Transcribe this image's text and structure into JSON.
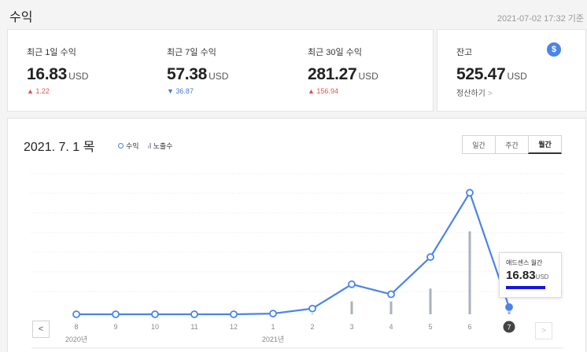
{
  "page": {
    "title": "수익",
    "as_of": "2021-07-02 17:32 기준"
  },
  "summary": [
    {
      "label": "최근 1일 수익",
      "value": "16.83",
      "unit": "USD",
      "delta": "1.22",
      "direction": "up"
    },
    {
      "label": "최근 7일 수익",
      "value": "57.38",
      "unit": "USD",
      "delta": "36.87",
      "direction": "down"
    },
    {
      "label": "최근 30일 수익",
      "value": "281.27",
      "unit": "USD",
      "delta": "156.94",
      "direction": "up"
    }
  ],
  "balance": {
    "label": "잔고",
    "value": "525.47",
    "unit": "USD",
    "link": "정산하기",
    "icon": "dollar-icon"
  },
  "chart_header": {
    "date": "2021. 7. 1 목",
    "legend": {
      "revenue": "수익",
      "impressions": "노출수"
    },
    "tabs": [
      "일간",
      "주간",
      "월간"
    ],
    "active_tab": "월간"
  },
  "tooltip": {
    "label": "애드센스 월간",
    "value": "16.83",
    "unit": "USD"
  },
  "colors": {
    "line": "#4a84e8",
    "bars": "#aab2bd",
    "up": "#e05252",
    "down": "#4a78d6"
  },
  "chart_data": {
    "type": "line",
    "categories": [
      "8",
      "9",
      "10",
      "11",
      "12",
      "1",
      "2",
      "3",
      "4",
      "5",
      "6",
      "7"
    ],
    "year_labels": [
      "2020년",
      "2021년"
    ],
    "series": [
      {
        "name": "수익",
        "values": [
          0,
          0,
          0,
          0,
          0,
          0.5,
          4,
          21,
          14,
          40,
          85,
          5
        ]
      },
      {
        "name": "노출수",
        "values": [
          0,
          0,
          0,
          0,
          0,
          0,
          0.5,
          9,
          9,
          18,
          58,
          2
        ]
      }
    ],
    "ylim": [
      0,
      100
    ],
    "grid": true,
    "selected_index": 11
  }
}
